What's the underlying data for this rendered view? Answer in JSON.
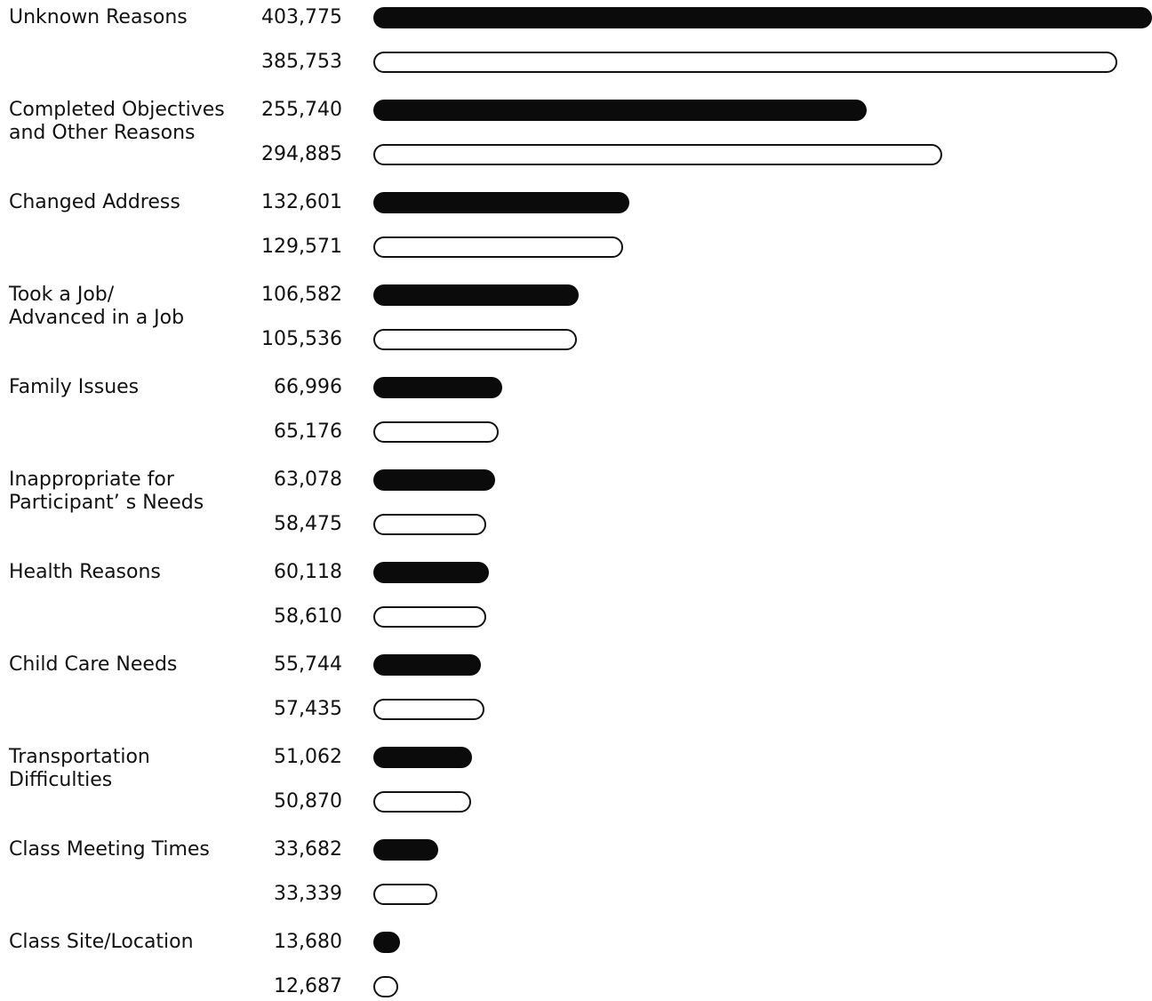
{
  "chart_data": {
    "type": "bar",
    "orientation": "horizontal",
    "categories": [
      "Unknown Reasons",
      "Completed Objectives\nand Other Reasons",
      "Changed Address",
      "Took a Job/\nAdvanced in a Job",
      "Family Issues",
      "Inappropriate for\nParticipant’ s Needs",
      "Health Reasons",
      "Child Care Needs",
      "Transportation\nDifficulties",
      "Class Meeting Times",
      "Class Site/Location"
    ],
    "series": [
      {
        "style": "filled",
        "color": "#0b0b0b",
        "values": [
          403775,
          255740,
          132601,
          106582,
          66996,
          63078,
          60118,
          55744,
          51062,
          33682,
          13680
        ],
        "labels": [
          "403,775",
          "255,740",
          "132,601",
          "106,582",
          "66,996",
          "63,078",
          "60,118",
          "55,744",
          "51,062",
          "33,682",
          "13,680"
        ]
      },
      {
        "style": "outline",
        "color": "#111111",
        "values": [
          385753,
          294885,
          129571,
          105536,
          65176,
          58475,
          58610,
          57435,
          50870,
          33339,
          12687
        ],
        "labels": [
          "385,753",
          "294,885",
          "129,571",
          "105,536",
          "65,176",
          "58,475",
          "58,610",
          "57,435",
          "50,870",
          "33,339",
          "12,687"
        ]
      }
    ],
    "title": "",
    "xlabel": "",
    "ylabel": "",
    "xlim": [
      0,
      403775
    ],
    "grid": false,
    "legend": "none"
  }
}
